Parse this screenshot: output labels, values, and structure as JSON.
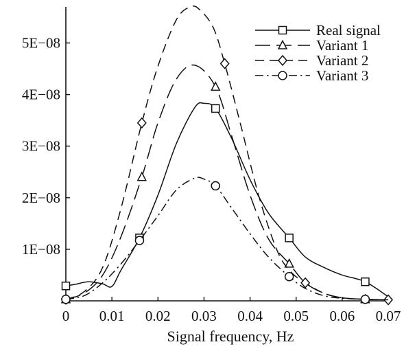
{
  "chart_data": {
    "type": "line",
    "title": "",
    "xlabel": "Signal frequency, Hz",
    "ylabel": "",
    "xlim": [
      0,
      0.07
    ],
    "ylim": [
      0,
      5.7e-08
    ],
    "x_ticks": [
      0,
      0.01,
      0.02,
      0.03,
      0.04,
      0.05,
      0.06,
      0.07
    ],
    "x_tick_labels": [
      "0",
      "0.01",
      "0.02",
      "0.03",
      "0.04",
      "0.05",
      "0.06",
      "0.07"
    ],
    "y_ticks": [
      1e-08,
      2e-08,
      3e-08,
      4e-08,
      5e-08
    ],
    "y_tick_labels": [
      "1E−08",
      "2E−08",
      "3E−08",
      "4E−08",
      "5E−08"
    ],
    "grid": false,
    "legend_position": "top-right",
    "series": [
      {
        "name": "Real signal",
        "line_style": "solid",
        "marker": "square",
        "x": [
          0,
          0.002,
          0.005,
          0.008,
          0.01,
          0.012,
          0.016,
          0.02,
          0.024,
          0.028,
          0.03,
          0.0325,
          0.036,
          0.04,
          0.044,
          0.0485,
          0.052,
          0.056,
          0.06,
          0.065,
          0.07
        ],
        "y": [
          2.9e-09,
          3.2e-09,
          3.7e-09,
          3.3e-09,
          2.8e-09,
          6e-09,
          1.22e-08,
          2.05e-08,
          3.05e-08,
          3.75e-08,
          3.83e-08,
          3.73e-08,
          3.15e-08,
          2.35e-08,
          1.7e-08,
          1.22e-08,
          8.5e-09,
          6.5e-09,
          5e-09,
          3.7e-09,
          8e-10
        ],
        "marker_x": [
          0,
          0.016,
          0.0325,
          0.0485,
          0.065
        ],
        "marker_y": [
          2.9e-09,
          1.22e-08,
          3.73e-08,
          1.22e-08,
          3.7e-09
        ]
      },
      {
        "name": "Variant 1",
        "line_style": "long-dash",
        "marker": "triangle",
        "x": [
          0,
          0.004,
          0.008,
          0.012,
          0.0165,
          0.02,
          0.024,
          0.028,
          0.0325,
          0.036,
          0.04,
          0.044,
          0.0485,
          0.052,
          0.056,
          0.06,
          0.065,
          0.07
        ],
        "y": [
          3e-10,
          1.5e-09,
          5e-09,
          1.25e-08,
          2.4e-08,
          3.45e-08,
          4.3e-08,
          4.57e-08,
          4.15e-08,
          3.2e-08,
          2.05e-08,
          1.2e-08,
          7.2e-09,
          3.5e-09,
          1.5e-09,
          6e-10,
          3e-10,
          2e-10
        ],
        "marker_x": [
          0,
          0.0165,
          0.0325,
          0.0485,
          0.065
        ],
        "marker_y": [
          3e-10,
          2.4e-08,
          4.15e-08,
          7.2e-09,
          3e-10
        ]
      },
      {
        "name": "Variant 2",
        "line_style": "dash",
        "marker": "diamond",
        "x": [
          0,
          0.004,
          0.008,
          0.012,
          0.0165,
          0.02,
          0.024,
          0.027,
          0.029,
          0.032,
          0.0345,
          0.038,
          0.042,
          0.046,
          0.049,
          0.052,
          0.056,
          0.06,
          0.065,
          0.07
        ],
        "y": [
          3e-10,
          1.8e-09,
          6.5e-09,
          1.8e-08,
          3.45e-08,
          4.55e-08,
          5.45e-08,
          5.7e-08,
          5.65e-08,
          5.3e-08,
          4.6e-08,
          3.4e-08,
          2e-08,
          9.5e-09,
          5.5e-09,
          3.5e-09,
          1.5e-09,
          6e-10,
          3e-10,
          2e-10
        ],
        "marker_x": [
          0,
          0.0165,
          0.0345,
          0.052,
          0.07
        ],
        "marker_y": [
          3e-10,
          3.45e-08,
          4.6e-08,
          3.5e-09,
          2e-10
        ]
      },
      {
        "name": "Variant 3",
        "line_style": "dash-dot",
        "marker": "circle",
        "x": [
          0,
          0.004,
          0.008,
          0.012,
          0.016,
          0.02,
          0.024,
          0.028,
          0.03,
          0.0325,
          0.036,
          0.04,
          0.044,
          0.0485,
          0.052,
          0.056,
          0.06,
          0.065,
          0.07
        ],
        "y": [
          3e-10,
          1e-09,
          3.5e-09,
          7.2e-09,
          1.17e-08,
          1.65e-08,
          2.15e-08,
          2.38e-08,
          2.36e-08,
          2.23e-08,
          1.8e-08,
          1.3e-08,
          8.5e-09,
          4.7e-09,
          2.4e-09,
          1e-09,
          5e-10,
          3e-10,
          2e-10
        ],
        "marker_x": [
          0,
          0.016,
          0.0325,
          0.0485,
          0.065
        ],
        "marker_y": [
          3e-10,
          1.17e-08,
          2.23e-08,
          4.7e-09,
          3e-10
        ]
      }
    ]
  }
}
